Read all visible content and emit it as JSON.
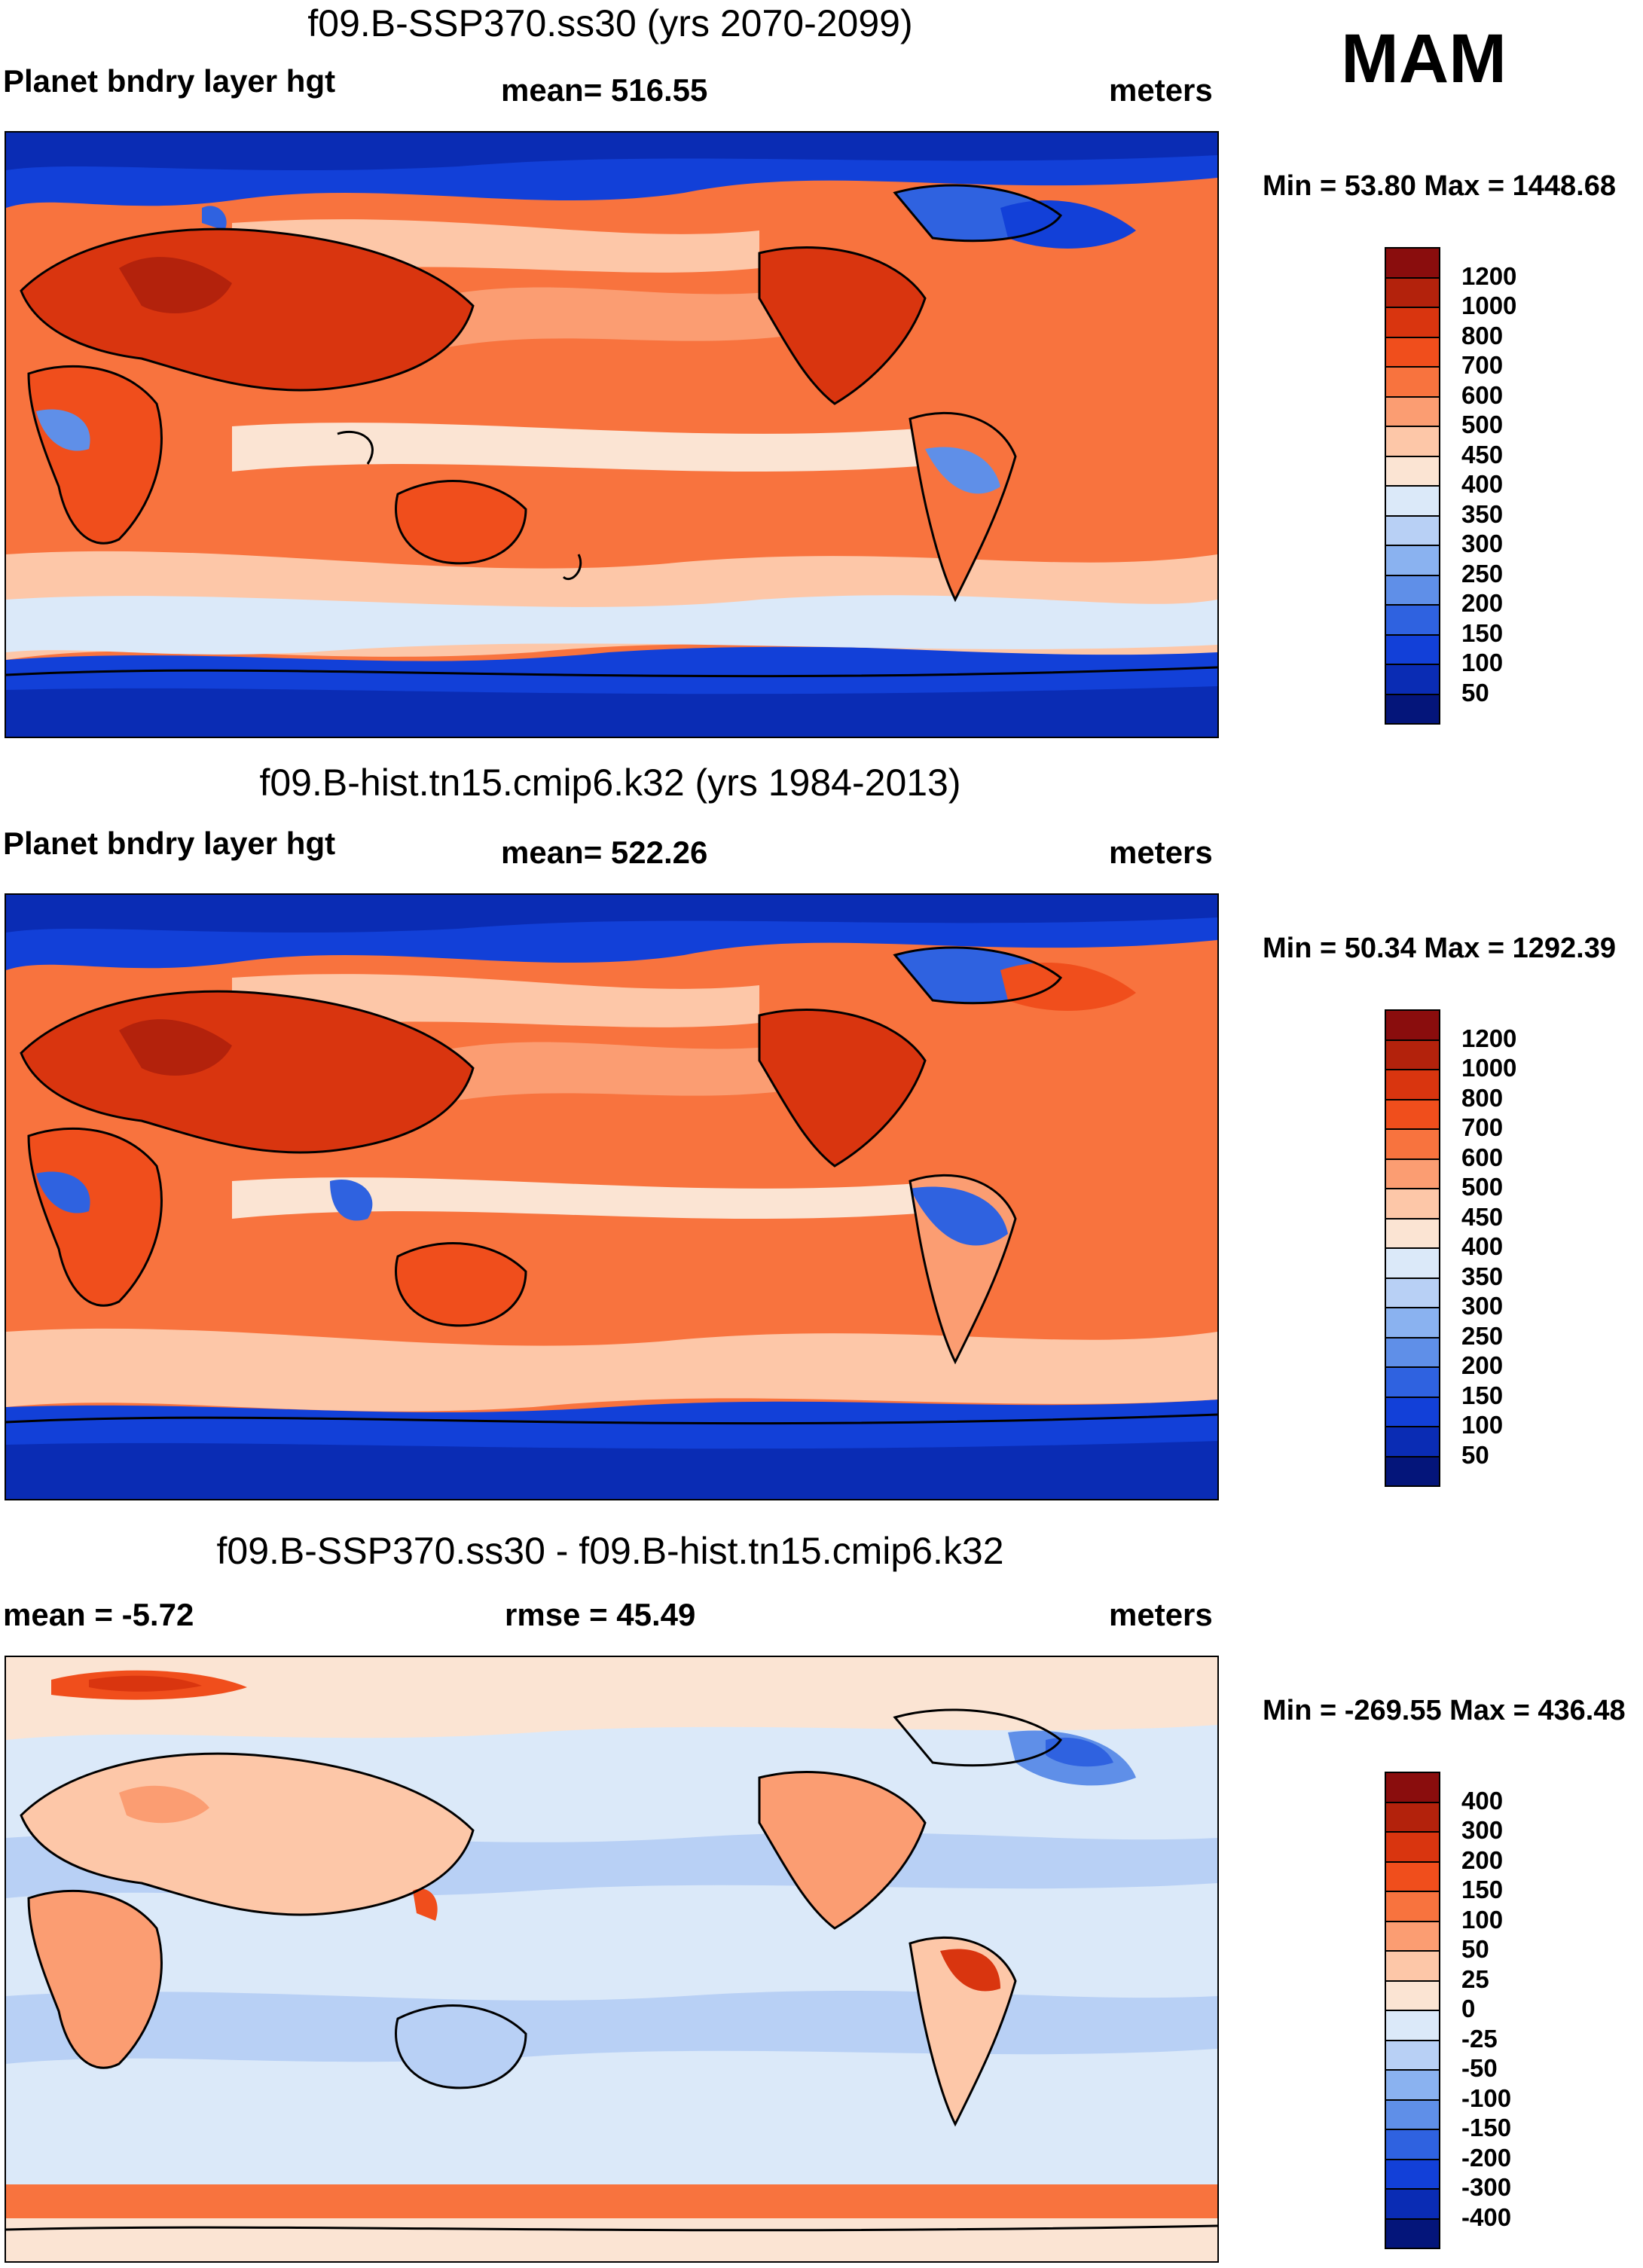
{
  "season": "MAM",
  "colors": {
    "warm_11": "#8a0d0d",
    "warm_10": "#b3220c",
    "warm_9": "#d9350f",
    "warm_8": "#f04e1c",
    "warm_7": "#f8733e",
    "warm_6": "#fb9d72",
    "warm_5": "#fdc7a8",
    "warm_4": "#fbe4d3",
    "cool_1": "#dbe9f9",
    "cool_2": "#b8d0f5",
    "cool_3": "#8ab2f0",
    "cool_4": "#5f8fe8",
    "cool_5": "#2f62e0",
    "cool_6": "#1240d8",
    "cool_7": "#0a2cb4",
    "cool_8": "#04157a",
    "land": "#000000"
  },
  "chart_data": [
    {
      "type": "heatmap",
      "title": "f09.B-SSP370.ss30 (yrs 2070-2099)",
      "variable": "Planet bndry layer hgt",
      "mean_text": "mean= 516.55",
      "units": "meters",
      "minmax_text": "Min =  53.80 Max = 1448.68",
      "min": 53.8,
      "max": 1448.68,
      "mean": 516.55,
      "colorbar_levels": [
        "1200",
        "1000",
        "800",
        "700",
        "600",
        "500",
        "450",
        "400",
        "350",
        "300",
        "250",
        "200",
        "150",
        "100",
        "50"
      ],
      "colorbar_colors": [
        "#8a0d0d",
        "#b3220c",
        "#d9350f",
        "#f04e1c",
        "#f8733e",
        "#fb9d72",
        "#fdc7a8",
        "#fbe4d3",
        "#dbe9f9",
        "#b8d0f5",
        "#8ab2f0",
        "#5f8fe8",
        "#2f62e0",
        "#1240d8",
        "#0a2cb4",
        "#04157a"
      ]
    },
    {
      "type": "heatmap",
      "title": "f09.B-hist.tn15.cmip6.k32 (yrs 1984-2013)",
      "variable": "Planet bndry layer hgt",
      "mean_text": "mean= 522.26",
      "units": "meters",
      "minmax_text": "Min =  50.34 Max = 1292.39",
      "min": 50.34,
      "max": 1292.39,
      "mean": 522.26,
      "colorbar_levels": [
        "1200",
        "1000",
        "800",
        "700",
        "600",
        "500",
        "450",
        "400",
        "350",
        "300",
        "250",
        "200",
        "150",
        "100",
        "50"
      ],
      "colorbar_colors": [
        "#8a0d0d",
        "#b3220c",
        "#d9350f",
        "#f04e1c",
        "#f8733e",
        "#fb9d72",
        "#fdc7a8",
        "#fbe4d3",
        "#dbe9f9",
        "#b8d0f5",
        "#8ab2f0",
        "#5f8fe8",
        "#2f62e0",
        "#1240d8",
        "#0a2cb4",
        "#04157a"
      ]
    },
    {
      "type": "heatmap",
      "title": "f09.B-SSP370.ss30 - f09.B-hist.tn15.cmip6.k32",
      "variable": "mean =  -5.72",
      "mean_text": "rmse =  45.49",
      "units": "meters",
      "minmax_text": "Min = -269.55 Max = 436.48",
      "min": -269.55,
      "max": 436.48,
      "mean": -5.72,
      "rmse": 45.49,
      "colorbar_levels": [
        "400",
        "300",
        "200",
        "150",
        "100",
        "50",
        "25",
        "0",
        "-25",
        "-50",
        "-100",
        "-150",
        "-200",
        "-300",
        "-400"
      ],
      "colorbar_colors": [
        "#8a0d0d",
        "#b3220c",
        "#d9350f",
        "#f04e1c",
        "#f8733e",
        "#fb9d72",
        "#fdc7a8",
        "#fbe4d3",
        "#dbe9f9",
        "#b8d0f5",
        "#8ab2f0",
        "#5f8fe8",
        "#2f62e0",
        "#1240d8",
        "#0a2cb4",
        "#04157a"
      ]
    }
  ]
}
